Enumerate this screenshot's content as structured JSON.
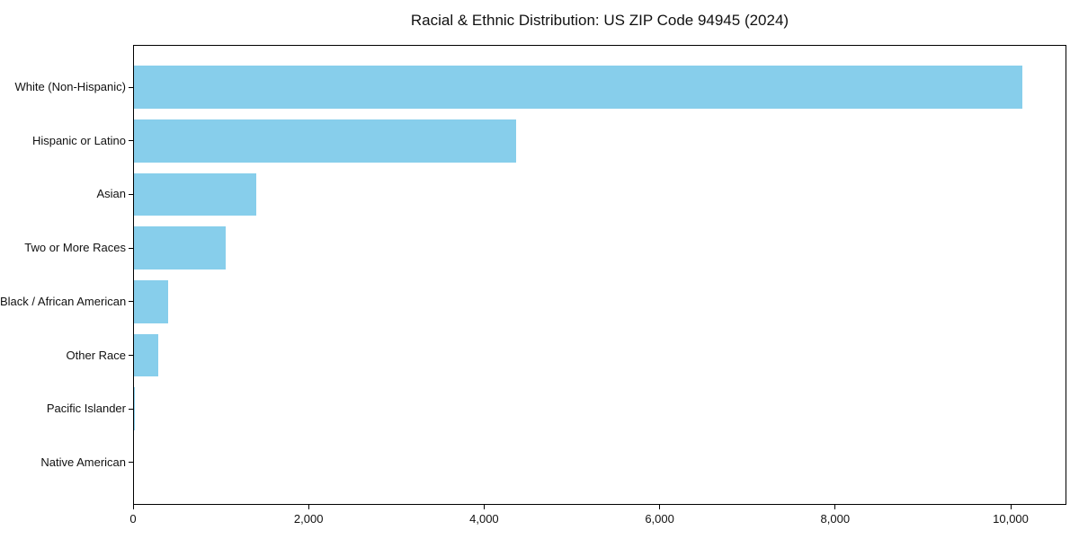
{
  "figure": {
    "title": "Racial & Ethnic Distribution: US ZIP Code 94945 (2024)"
  },
  "chart_data": {
    "type": "bar",
    "orientation": "horizontal",
    "title": "Racial & Ethnic Distribution: US ZIP Code 94945 (2024)",
    "categories": [
      "White (Non-Hispanic)",
      "Hispanic or Latino",
      "Asian",
      "Two or More Races",
      "Black / African American",
      "Other Race",
      "Pacific Islander",
      "Native American"
    ],
    "values": [
      10130,
      4365,
      1404,
      1055,
      400,
      287,
      12,
      8
    ],
    "xlabel": "",
    "ylabel": "",
    "xlim": [
      0,
      10635
    ],
    "x_ticks": [
      0,
      2000,
      4000,
      6000,
      8000,
      10000
    ],
    "x_tick_labels": [
      "0",
      "2,000",
      "4,000",
      "6,000",
      "8,000",
      "10,000"
    ],
    "grid": false,
    "legend": false,
    "bar_color": "#87CEEB",
    "axis_color": "#000000",
    "text_color": "#111111",
    "background": "#FFFFFF"
  }
}
